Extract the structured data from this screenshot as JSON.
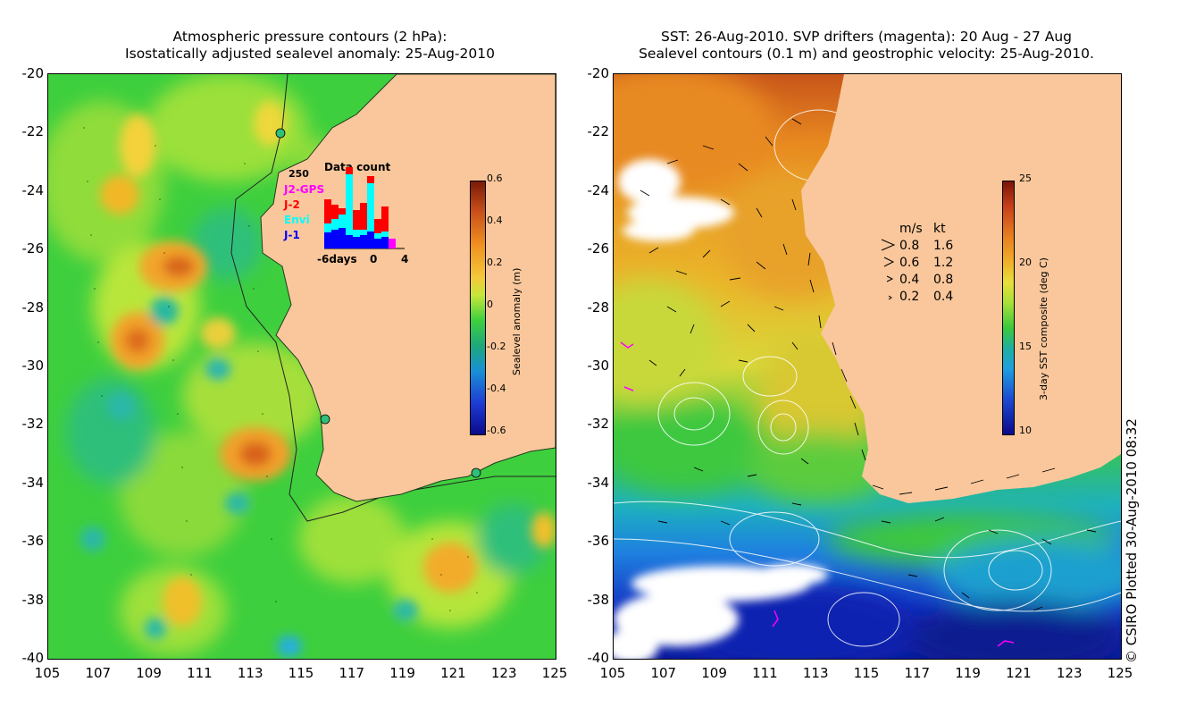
{
  "left_panel": {
    "title_line1": "Atmospheric pressure contours (2 hPa):",
    "title_line2": "Isostatically adjusted sealevel anomaly: 25-Aug-2010",
    "colorbar": {
      "label": "Sealevel anomaly (m)",
      "ticks": [
        "0.6",
        "0.4",
        "0.2",
        "0",
        "-0.2",
        "-0.4",
        "-0.6"
      ],
      "range": [
        -0.6,
        0.6
      ]
    },
    "data_count": {
      "title": "Data count",
      "max_label": "250",
      "x_labels": [
        "-6days",
        "0",
        "4"
      ],
      "legend": [
        {
          "name": "J2-GPS",
          "color": "#ff00ff"
        },
        {
          "name": "J-2",
          "color": "#ff0000"
        },
        {
          "name": "Envi",
          "color": "#00ffff"
        },
        {
          "name": "J-1",
          "color": "#0000ff"
        }
      ]
    },
    "colors": {
      "ocean_base": "#3ecf3e",
      "land": "#f9c79b",
      "high": "#c95a14",
      "low": "#1a8fd6"
    }
  },
  "right_panel": {
    "title_line1": "SST: 26-Aug-2010. SVP drifters (magenta): 20 Aug - 27 Aug",
    "title_line2": "Sealevel contours (0.1 m) and geostrophic velocity: 25-Aug-2010.",
    "colorbar": {
      "label": "3-day SST composite (deg C)",
      "ticks": [
        "25",
        "20",
        "15",
        "10"
      ],
      "range": [
        10,
        25
      ]
    },
    "velocity_legend": {
      "header_ms": "m/s",
      "header_kt": "kt",
      "rows": [
        {
          "ms": "0.8",
          "kt": "1.6"
        },
        {
          "ms": "0.6",
          "kt": "1.2"
        },
        {
          "ms": "0.4",
          "kt": "0.8"
        },
        {
          "ms": "0.2",
          "kt": "0.4"
        }
      ]
    },
    "colors": {
      "warm": "#e07a14",
      "mid": "#3cc83c",
      "cool": "#1e9fe0",
      "cold": "#0a1fb4",
      "cloud": "#ffffff",
      "land": "#f9c79b"
    }
  },
  "axes": {
    "lat_labels": [
      "-20",
      "-22",
      "-24",
      "-26",
      "-28",
      "-30",
      "-32",
      "-34",
      "-36",
      "-38",
      "-40"
    ],
    "lon_labels": [
      "105",
      "107",
      "109",
      "111",
      "113",
      "115",
      "117",
      "119",
      "121",
      "123",
      "125"
    ]
  },
  "copyright": "© CSIRO Plotted 30-Aug-2010 08:32"
}
